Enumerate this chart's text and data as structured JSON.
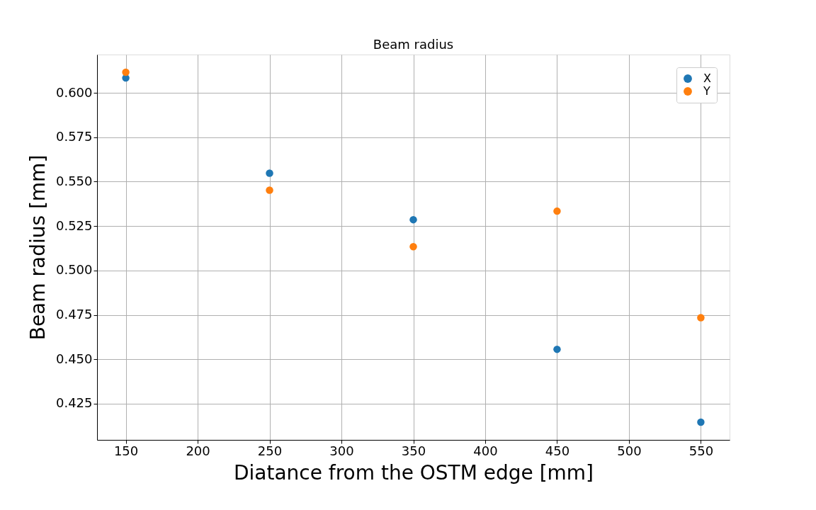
{
  "chart_data": {
    "type": "scatter",
    "title": "Beam radius",
    "xlabel": "Diatance from the OSTM edge [mm]",
    "ylabel": "Beam radius [mm]",
    "x": [
      150,
      250,
      350,
      450,
      550
    ],
    "series": [
      {
        "name": "X",
        "color": "#1f77b4",
        "values": [
          0.6084,
          0.5548,
          0.5286,
          0.4556,
          0.4146
        ]
      },
      {
        "name": "Y",
        "color": "#ff7f0e",
        "values": [
          0.6116,
          0.5452,
          0.5134,
          0.5334,
          0.4734
        ]
      }
    ],
    "xlim": [
      130,
      570
    ],
    "xticks": [
      150,
      200,
      250,
      300,
      350,
      400,
      450,
      500,
      550
    ],
    "ylim": [
      0.4046,
      0.6216
    ],
    "yticks": [
      {
        "value": 0.425,
        "label": "0.425"
      },
      {
        "value": 0.45,
        "label": "0.450"
      },
      {
        "value": 0.475,
        "label": "0.475"
      },
      {
        "value": 0.5,
        "label": "0.500"
      },
      {
        "value": 0.525,
        "label": "0.525"
      },
      {
        "value": 0.55,
        "label": "0.550"
      },
      {
        "value": 0.575,
        "label": "0.575"
      },
      {
        "value": 0.6,
        "label": "0.600"
      }
    ],
    "grid": true,
    "legend": "top right",
    "marker": "circle"
  }
}
